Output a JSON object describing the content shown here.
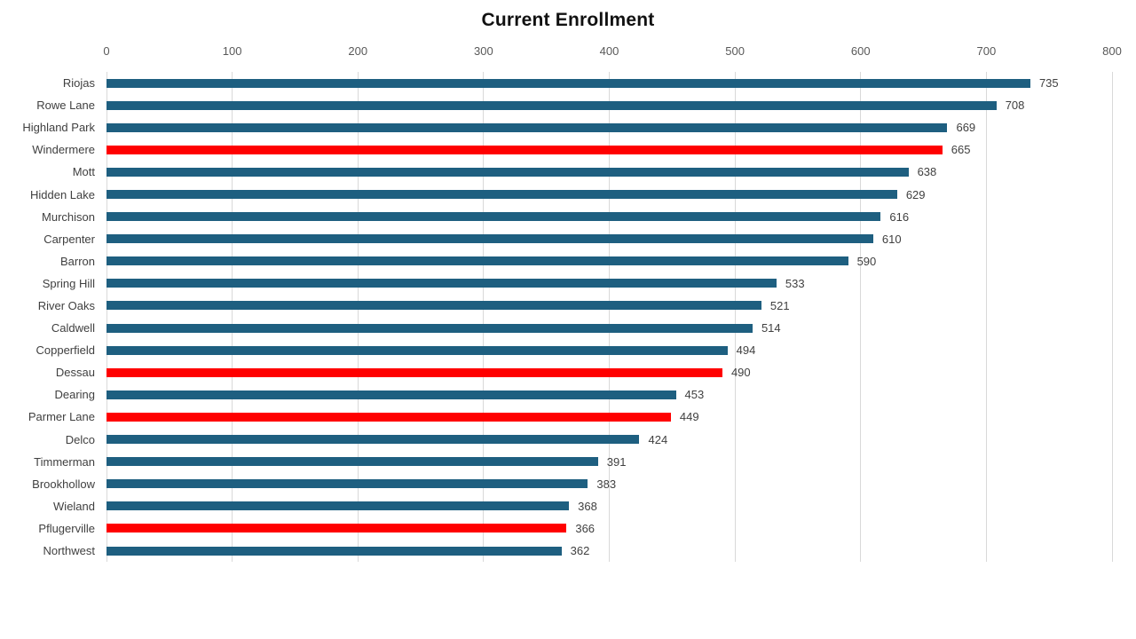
{
  "title": "Current Enrollment",
  "colors": {
    "bar": "#1E5F80",
    "highlight": "#FF0000",
    "gridline": "#D9D9D9",
    "tick_label": "#595959",
    "data_label": "#404040",
    "title": "#111111",
    "background": "#FFFFFF"
  },
  "chart_data": {
    "type": "bar",
    "orientation": "horizontal",
    "title": "Current Enrollment",
    "xlabel": "",
    "ylabel": "",
    "xlim": [
      0,
      800
    ],
    "xticks": [
      0,
      100,
      200,
      300,
      400,
      500,
      600,
      700,
      800
    ],
    "axis_position": "top",
    "grid": "vertical",
    "legend": "none",
    "data_labels": true,
    "categories": [
      "Riojas",
      "Rowe Lane",
      "Highland Park",
      "Windermere",
      "Mott",
      "Hidden Lake",
      "Murchison",
      "Carpenter",
      "Barron",
      "Spring Hill",
      "River Oaks",
      "Caldwell",
      "Copperfield",
      "Dessau",
      "Dearing",
      "Parmer Lane",
      "Delco",
      "Timmerman",
      "Brookhollow",
      "Wieland",
      "Pflugerville",
      "Northwest"
    ],
    "values": [
      735,
      708,
      669,
      665,
      638,
      629,
      616,
      610,
      590,
      533,
      521,
      514,
      494,
      490,
      453,
      449,
      424,
      391,
      383,
      368,
      366,
      362
    ],
    "highlighted_categories": [
      "Windermere",
      "Dessau",
      "Parmer Lane",
      "Pflugerville"
    ]
  }
}
